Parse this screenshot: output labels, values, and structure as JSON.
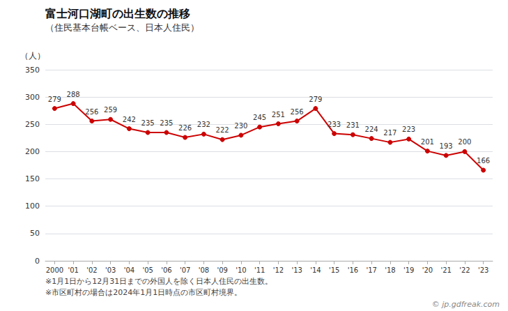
{
  "chart_data": {
    "type": "line",
    "title": "富士河口湖町の出生数の推移",
    "subtitle": "（住民基本台帳ベース、日本人住民）",
    "y_label": "（人）",
    "categories": [
      "2000",
      "'01",
      "'02",
      "'03",
      "'04",
      "'05",
      "'06",
      "'07",
      "'08",
      "'09",
      "'10",
      "'11",
      "'12",
      "'13",
      "'14",
      "'15",
      "'16",
      "'17",
      "'18",
      "'19",
      "'20",
      "'21",
      "'22",
      "'23"
    ],
    "values": [
      279,
      288,
      256,
      259,
      242,
      235,
      235,
      226,
      232,
      222,
      230,
      245,
      251,
      256,
      279,
      233,
      231,
      224,
      217,
      223,
      201,
      193,
      200,
      166
    ],
    "color": "#cc0000",
    "marker": "circle",
    "ylim": [
      0,
      350
    ],
    "yticks": [
      0,
      50,
      100,
      150,
      200,
      250,
      300,
      350
    ],
    "grid": true,
    "data_labels": true,
    "annotations": [
      "※1月1日から12月31日までの外国人を除く日本人住民の出生数。",
      "※市区町村の場合は2024年1月1日時点の市区町村境界。",
      "© jp.gdfreak.com"
    ]
  }
}
